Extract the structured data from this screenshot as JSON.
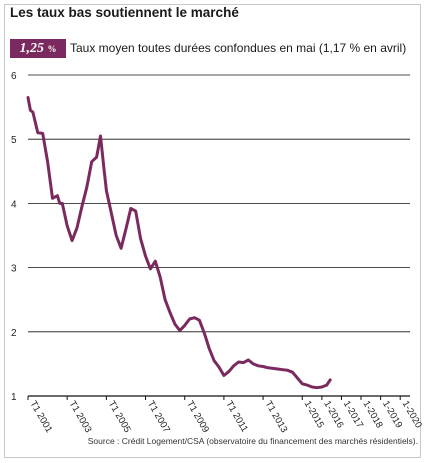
{
  "header": {
    "title": "Les taux bas soutiennent le marché",
    "badge_value": "1,25",
    "badge_unit": "%",
    "subtitle": "Taux moyen toutes durées confondues en mai (1,17 % en avril)"
  },
  "source": "Source : Crédit Logement/CSA (observatoire du financement des marchés résidentiels).",
  "colors": {
    "line": "#7a2a5e",
    "badge": "#7a2a5e",
    "grid": "#111111"
  },
  "chart_data": {
    "type": "line",
    "title": "Les taux bas soutiennent le marché",
    "xlabel": "",
    "ylabel": "",
    "ylim": [
      1,
      6
    ],
    "yticks": [
      1,
      2,
      3,
      4,
      5,
      6
    ],
    "grid": "horizontal",
    "legend": "none",
    "xlim": [
      0,
      78
    ],
    "xticks": [
      {
        "label": "T1 2001",
        "x": 0
      },
      {
        "label": "T1 2003",
        "x": 8
      },
      {
        "label": "T1 2005",
        "x": 16
      },
      {
        "label": "T1 2007",
        "x": 24
      },
      {
        "label": "T1 2009",
        "x": 32
      },
      {
        "label": "T1 2011",
        "x": 40
      },
      {
        "label": "T1 2013",
        "x": 48
      },
      {
        "label": "1-2015",
        "x": 56
      },
      {
        "label": "1-2016",
        "x": 60
      },
      {
        "label": "1-2017",
        "x": 64
      },
      {
        "label": "1-2018",
        "x": 68
      },
      {
        "label": "1-2019",
        "x": 72
      },
      {
        "label": "1-2020",
        "x": 76
      }
    ],
    "series": [
      {
        "values": [
          [
            0,
            5.65
          ],
          [
            0.5,
            5.45
          ],
          [
            1,
            5.42
          ],
          [
            2,
            5.1
          ],
          [
            3,
            5.09
          ],
          [
            4,
            4.65
          ],
          [
            5,
            4.08
          ],
          [
            6,
            4.12
          ],
          [
            6.5,
            4.0
          ],
          [
            7,
            4.0
          ],
          [
            8,
            3.65
          ],
          [
            9,
            3.42
          ],
          [
            10,
            3.62
          ],
          [
            11,
            3.95
          ],
          [
            12,
            4.25
          ],
          [
            13,
            4.65
          ],
          [
            14,
            4.72
          ],
          [
            14.8,
            5.05
          ],
          [
            15.5,
            4.55
          ],
          [
            16,
            4.2
          ],
          [
            17,
            3.85
          ],
          [
            18,
            3.5
          ],
          [
            19,
            3.3
          ],
          [
            20,
            3.6
          ],
          [
            21,
            3.92
          ],
          [
            22,
            3.88
          ],
          [
            23,
            3.45
          ],
          [
            24,
            3.18
          ],
          [
            25,
            2.98
          ],
          [
            26,
            3.1
          ],
          [
            27,
            2.85
          ],
          [
            28,
            2.5
          ],
          [
            29,
            2.3
          ],
          [
            30,
            2.12
          ],
          [
            31,
            2.02
          ],
          [
            32,
            2.1
          ],
          [
            33,
            2.2
          ],
          [
            34,
            2.22
          ],
          [
            35,
            2.18
          ],
          [
            36,
            1.98
          ],
          [
            37,
            1.74
          ],
          [
            38,
            1.55
          ],
          [
            39,
            1.45
          ],
          [
            40,
            1.32
          ],
          [
            41,
            1.38
          ],
          [
            42,
            1.47
          ],
          [
            43,
            1.53
          ],
          [
            44,
            1.52
          ],
          [
            45,
            1.56
          ],
          [
            46,
            1.5
          ],
          [
            47,
            1.47
          ],
          [
            48,
            1.46
          ],
          [
            49,
            1.44
          ],
          [
            50,
            1.43
          ],
          [
            51,
            1.42
          ],
          [
            52,
            1.41
          ],
          [
            53,
            1.4
          ],
          [
            54,
            1.37
          ],
          [
            55,
            1.28
          ],
          [
            56,
            1.19
          ],
          [
            57,
            1.17
          ],
          [
            58,
            1.14
          ],
          [
            59,
            1.13
          ],
          [
            60,
            1.14
          ],
          [
            61,
            1.17
          ],
          [
            61.7,
            1.25
          ]
        ]
      }
    ]
  }
}
